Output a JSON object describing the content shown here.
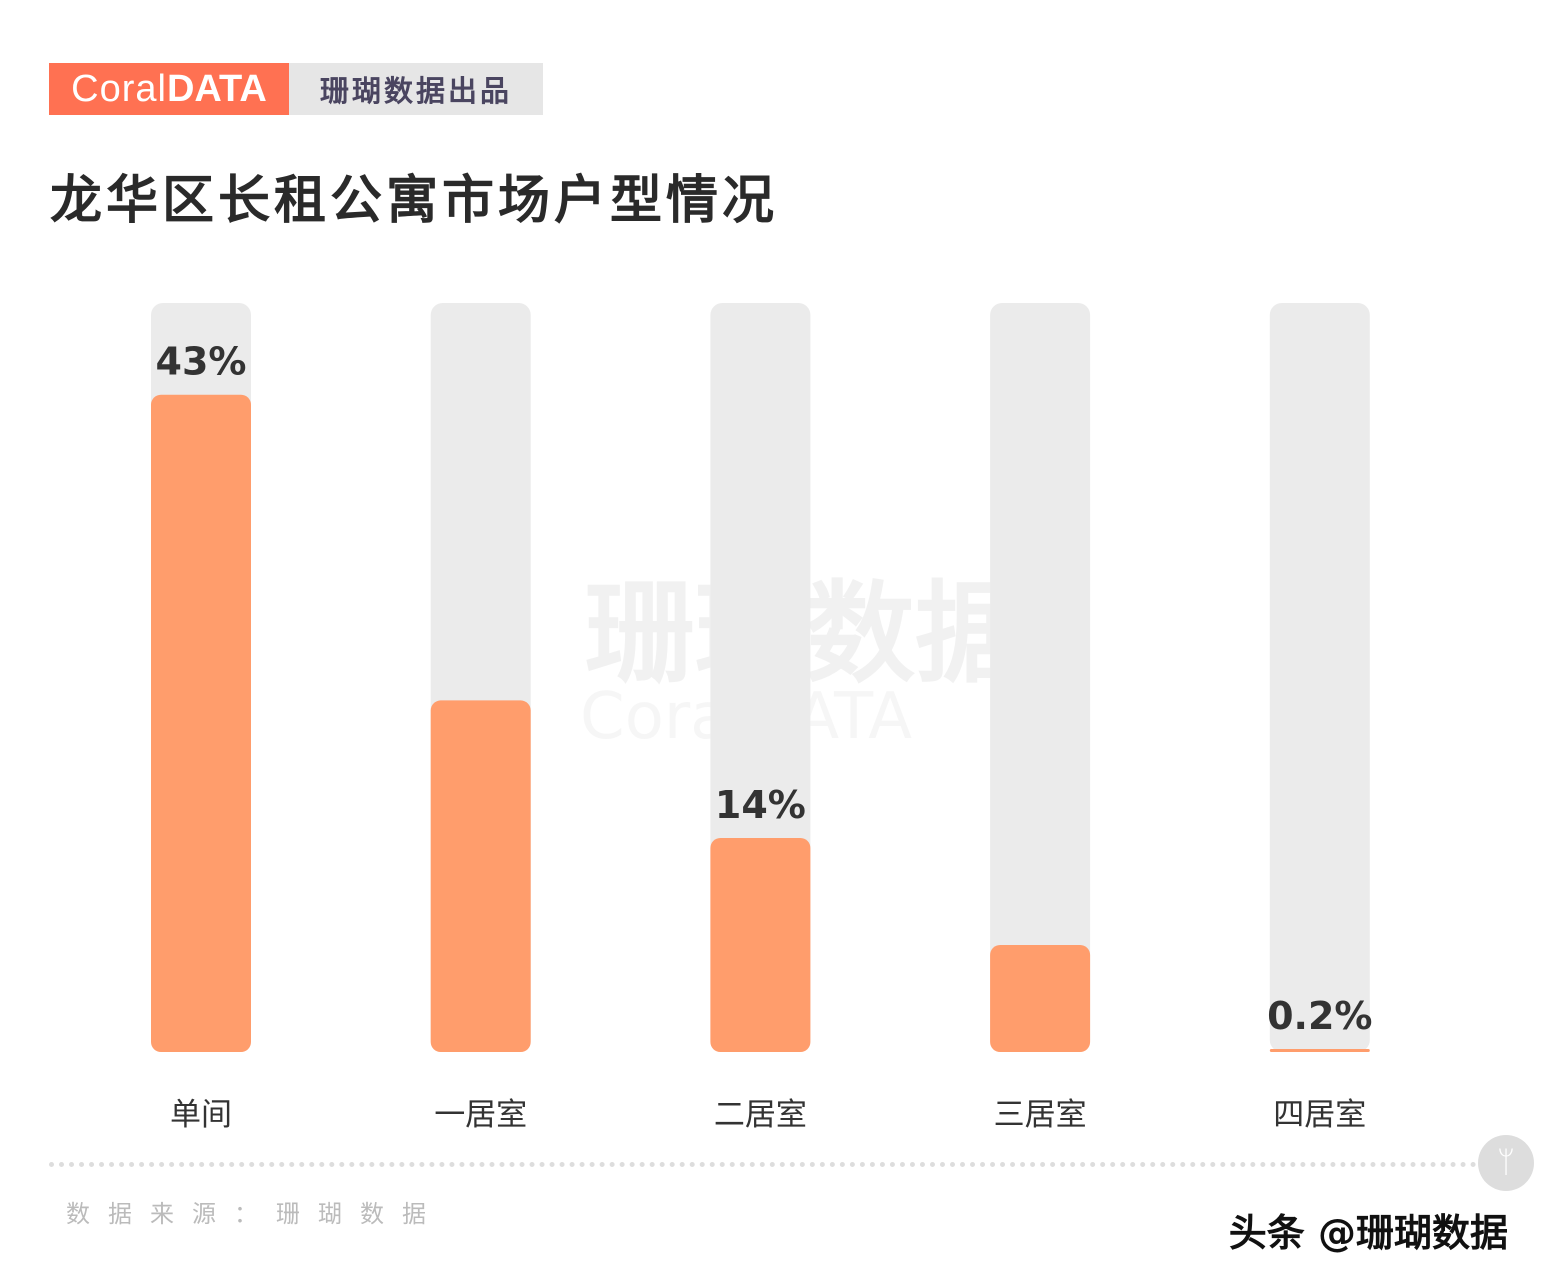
{
  "brand": {
    "logo_light": "Coral",
    "logo_bold": "DATA",
    "subtitle": "珊瑚数据出品"
  },
  "chart_data": {
    "type": "bar",
    "title": "龙华区长租公寓市场户型情况",
    "categories": [
      "单间",
      "一居室",
      "二居室",
      "三居室",
      "四居室"
    ],
    "values": [
      43,
      23,
      14,
      7,
      0.2
    ],
    "data_labels": [
      "43%",
      null,
      "14%",
      null,
      "0.2%"
    ],
    "unit": "%",
    "ylim": [
      0,
      49
    ],
    "grid": false,
    "colors": {
      "bar": "#ff9d6c",
      "track": "#ebebeb",
      "label": "#333333"
    }
  },
  "watermark": {
    "text": "珊瑚数据",
    "sub": "CoralDATA"
  },
  "footer": {
    "source": "数据来源：珊瑚数据",
    "credit": "头条 @珊瑚数据"
  }
}
